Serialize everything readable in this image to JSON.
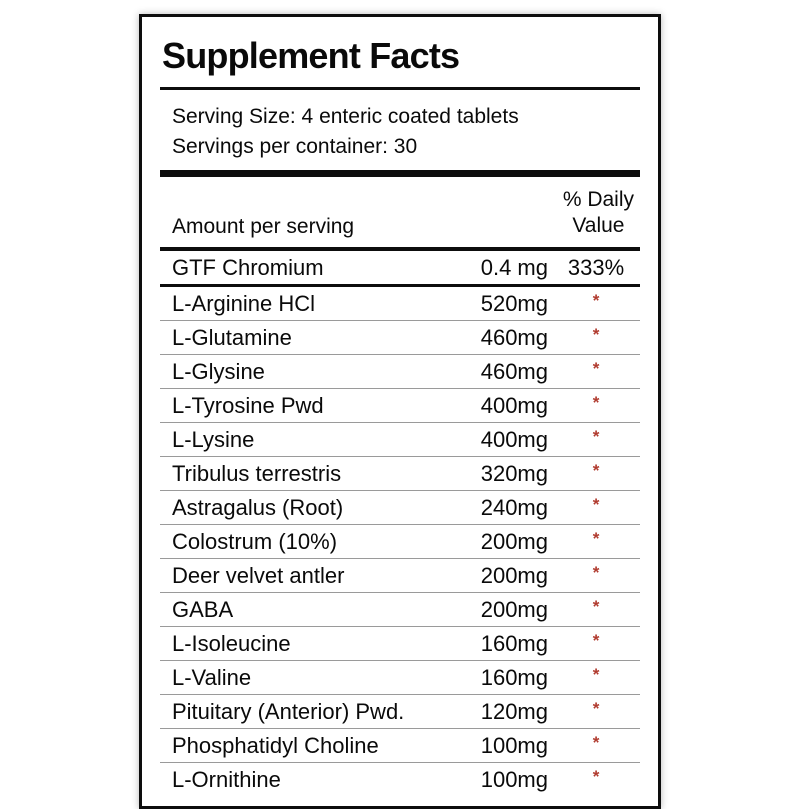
{
  "label": {
    "title": "Supplement Facts",
    "serving": {
      "size": "Serving Size: 4 enteric coated tablets",
      "per_container": "Servings per container: 30"
    },
    "columns": {
      "amount_header": "Amount per serving",
      "dv_header": "% Daily\nValue"
    },
    "rows": [
      {
        "name": "GTF Chromium",
        "amount": "0.4 mg",
        "dv": "333%"
      },
      {
        "name": "L-Arginine HCl",
        "amount": "520mg",
        "dv": "*"
      },
      {
        "name": "L-Glutamine",
        "amount": "460mg",
        "dv": "*"
      },
      {
        "name": "L-Glysine",
        "amount": "460mg",
        "dv": "*"
      },
      {
        "name": "L-Tyrosine Pwd",
        "amount": "400mg",
        "dv": "*"
      },
      {
        "name": "L-Lysine",
        "amount": "400mg",
        "dv": "*"
      },
      {
        "name": "Tribulus terrestris",
        "amount": "320mg",
        "dv": "*"
      },
      {
        "name": "Astragalus (Root)",
        "amount": "240mg",
        "dv": "*"
      },
      {
        "name": "Colostrum (10%)",
        "amount": "200mg",
        "dv": "*"
      },
      {
        "name": "Deer velvet antler",
        "amount": "200mg",
        "dv": "*"
      },
      {
        "name": "GABA",
        "amount": "200mg",
        "dv": "*"
      },
      {
        "name": "L-Isoleucine",
        "amount": "160mg",
        "dv": "*"
      },
      {
        "name": "L-Valine",
        "amount": "160mg",
        "dv": "*"
      },
      {
        "name": "Pituitary (Anterior) Pwd.",
        "amount": "120mg",
        "dv": "*"
      },
      {
        "name": "Phosphatidyl Choline",
        "amount": "100mg",
        "dv": "*"
      },
      {
        "name": "L-Ornithine",
        "amount": "100mg",
        "dv": "*"
      }
    ],
    "colors": {
      "asterisk_red": "#b03a2e",
      "rule_black": "#0d0d0d",
      "divider_gray": "#9a9a9a"
    }
  }
}
